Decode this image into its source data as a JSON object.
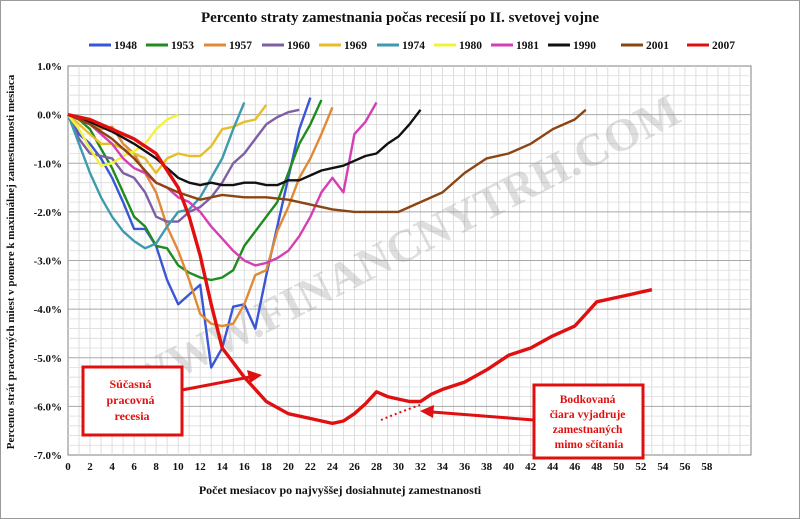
{
  "chart_data": {
    "type": "line",
    "title": "Percento straty zamestnania počas recesií po II. svetovej vojne",
    "xlabel": "Počet mesiacov po najvyššej dosiahnutej zamestnanosti",
    "ylabel": "Percento strát pracovných miest  v pomere k maximálnej zamestnanosti mesiaca",
    "xlim": [
      0,
      62
    ],
    "ylim": [
      -7.0,
      1.0
    ],
    "x_ticks": [
      "0",
      "2",
      "4",
      "6",
      "8",
      "10",
      "12",
      "14",
      "16",
      "18",
      "20",
      "22",
      "24",
      "26",
      "28",
      "30",
      "32",
      "34",
      "36",
      "38",
      "40",
      "42",
      "44",
      "46",
      "48",
      "50",
      "52",
      "54",
      "56",
      "58"
    ],
    "y_ticks": [
      "1.0%",
      "0.0%",
      "-1.0%",
      "-2.0%",
      "-3.0%",
      "-4.0%",
      "-5.0%",
      "-6.0%",
      "-7.0%"
    ],
    "grid": true,
    "legend_position": "top",
    "watermark": "WWW.FINANCNYTRH.COM",
    "series": [
      {
        "name": "1948",
        "color": "#3a55d8",
        "x": [
          0,
          1,
          2,
          3,
          4,
          5,
          6,
          7,
          8,
          9,
          10,
          11,
          12,
          13,
          14,
          15,
          16,
          17,
          18,
          19,
          20,
          21,
          22
        ],
        "y": [
          0,
          -0.4,
          -0.6,
          -0.9,
          -1.3,
          -1.8,
          -2.35,
          -2.35,
          -2.7,
          -3.4,
          -3.9,
          -3.7,
          -3.5,
          -5.2,
          -4.8,
          -3.95,
          -3.9,
          -4.4,
          -3.3,
          -2.3,
          -1.3,
          -0.3,
          0.35
        ]
      },
      {
        "name": "1953",
        "color": "#1e8c1e",
        "x": [
          0,
          1,
          2,
          3,
          4,
          5,
          6,
          7,
          8,
          9,
          10,
          11,
          12,
          13,
          14,
          15,
          16,
          17,
          18,
          19,
          20,
          21,
          22,
          23
        ],
        "y": [
          0,
          -0.1,
          -0.3,
          -0.7,
          -1.1,
          -1.6,
          -2.1,
          -2.3,
          -2.7,
          -2.75,
          -3.1,
          -3.25,
          -3.35,
          -3.4,
          -3.35,
          -3.2,
          -2.7,
          -2.4,
          -2.1,
          -1.8,
          -1.2,
          -0.6,
          -0.2,
          0.3
        ]
      },
      {
        "name": "1957",
        "color": "#e08a38",
        "x": [
          0,
          1,
          2,
          3,
          4,
          5,
          6,
          7,
          8,
          9,
          10,
          11,
          12,
          13,
          14,
          15,
          16,
          17,
          18,
          19,
          20,
          21,
          22,
          23,
          24
        ],
        "y": [
          0,
          -0.1,
          -0.2,
          -0.3,
          -0.25,
          -0.6,
          -0.8,
          -1.2,
          -1.6,
          -2.3,
          -2.8,
          -3.4,
          -4.1,
          -4.3,
          -4.35,
          -4.3,
          -3.9,
          -3.3,
          -3.2,
          -2.4,
          -1.9,
          -1.3,
          -0.9,
          -0.4,
          0.15
        ]
      },
      {
        "name": "1960",
        "color": "#7d5fa6",
        "x": [
          0,
          1,
          2,
          3,
          4,
          5,
          6,
          7,
          8,
          9,
          10,
          11,
          12,
          13,
          14,
          15,
          16,
          17,
          18,
          19,
          20,
          21
        ],
        "y": [
          0,
          -0.5,
          -0.8,
          -0.85,
          -0.9,
          -1.2,
          -1.3,
          -1.6,
          -2.1,
          -2.2,
          -2.2,
          -2.0,
          -1.9,
          -1.7,
          -1.4,
          -1.0,
          -0.8,
          -0.5,
          -0.2,
          -0.05,
          0.05,
          0.1
        ]
      },
      {
        "name": "1969",
        "color": "#e8be28",
        "x": [
          0,
          1,
          2,
          3,
          4,
          5,
          6,
          7,
          8,
          9,
          10,
          11,
          12,
          13,
          14,
          15,
          16,
          17,
          18
        ],
        "y": [
          0,
          -0.2,
          -0.4,
          -0.6,
          -0.6,
          -0.7,
          -0.8,
          -0.9,
          -1.2,
          -0.9,
          -0.8,
          -0.85,
          -0.85,
          -0.65,
          -0.3,
          -0.25,
          -0.15,
          -0.1,
          0.2
        ]
      },
      {
        "name": "1974",
        "color": "#3f9aae",
        "x": [
          0,
          1,
          2,
          3,
          4,
          5,
          6,
          7,
          8,
          9,
          10,
          11,
          12,
          13,
          14,
          15,
          16
        ],
        "y": [
          0,
          -0.6,
          -1.2,
          -1.7,
          -2.1,
          -2.4,
          -2.6,
          -2.75,
          -2.65,
          -2.3,
          -2.0,
          -1.95,
          -1.7,
          -1.3,
          -0.9,
          -0.3,
          0.25
        ]
      },
      {
        "name": "1980",
        "color": "#f2f23c",
        "x": [
          0,
          1,
          2,
          3,
          4,
          5,
          6,
          7,
          8,
          9,
          10
        ],
        "y": [
          0,
          -0.3,
          -0.7,
          -1.05,
          -1.0,
          -0.85,
          -0.75,
          -0.6,
          -0.3,
          -0.1,
          0.0
        ]
      },
      {
        "name": "1981",
        "color": "#d43fb4",
        "x": [
          0,
          1,
          2,
          3,
          4,
          5,
          6,
          7,
          8,
          9,
          10,
          11,
          12,
          13,
          14,
          15,
          16,
          17,
          18,
          19,
          20,
          21,
          22,
          23,
          24,
          25,
          26,
          27,
          28
        ],
        "y": [
          0,
          -0.1,
          -0.2,
          -0.4,
          -0.6,
          -0.9,
          -1.1,
          -1.2,
          -1.4,
          -1.5,
          -1.7,
          -1.8,
          -2.0,
          -2.3,
          -2.55,
          -2.8,
          -3.0,
          -3.1,
          -3.05,
          -2.95,
          -2.8,
          -2.5,
          -2.1,
          -1.6,
          -1.3,
          -1.6,
          -0.4,
          -0.15,
          0.25
        ]
      },
      {
        "name": "1990",
        "color": "#111111",
        "x": [
          0,
          2,
          4,
          6,
          8,
          10,
          11,
          12,
          13,
          14,
          15,
          16,
          17,
          18,
          19,
          20,
          21,
          22,
          23,
          24,
          25,
          26,
          27,
          28,
          29,
          30,
          31,
          32
        ],
        "y": [
          0,
          -0.15,
          -0.35,
          -0.6,
          -0.9,
          -1.3,
          -1.4,
          -1.45,
          -1.4,
          -1.45,
          -1.45,
          -1.4,
          -1.4,
          -1.45,
          -1.45,
          -1.35,
          -1.35,
          -1.25,
          -1.15,
          -1.1,
          -1.05,
          -0.95,
          -0.85,
          -0.8,
          -0.6,
          -0.45,
          -0.2,
          0.1
        ]
      },
      {
        "name": "2001",
        "color": "#8b4513",
        "x": [
          0,
          2,
          4,
          6,
          8,
          10,
          12,
          14,
          16,
          18,
          20,
          22,
          24,
          26,
          28,
          30,
          32,
          34,
          36,
          38,
          40,
          42,
          44,
          46,
          47
        ],
        "y": [
          0,
          -0.2,
          -0.5,
          -0.9,
          -1.4,
          -1.6,
          -1.75,
          -1.65,
          -1.7,
          -1.7,
          -1.75,
          -1.85,
          -1.95,
          -2.0,
          -2.0,
          -2.0,
          -1.8,
          -1.6,
          -1.2,
          -0.9,
          -0.8,
          -0.6,
          -0.3,
          -0.1,
          0.1
        ]
      },
      {
        "name": "2007",
        "color": "#e01010",
        "x": [
          0,
          2,
          4,
          6,
          8,
          10,
          11,
          12,
          13,
          14,
          16,
          18,
          20,
          22,
          24,
          25,
          26,
          27,
          28,
          29,
          30,
          31,
          32,
          33,
          34,
          36,
          38,
          40,
          42,
          44,
          46,
          47,
          48,
          50,
          53
        ],
        "y": [
          0,
          -0.1,
          -0.3,
          -0.5,
          -0.8,
          -1.5,
          -2.1,
          -2.9,
          -3.9,
          -4.8,
          -5.4,
          -5.9,
          -6.15,
          -6.25,
          -6.35,
          -6.3,
          -6.15,
          -5.95,
          -5.7,
          -5.8,
          -5.85,
          -5.9,
          -5.9,
          -5.75,
          -5.65,
          -5.5,
          -5.25,
          -4.95,
          -4.8,
          -4.55,
          -4.35,
          -4.1,
          -3.85,
          -3.75,
          -3.6
        ]
      }
    ],
    "annotations": [
      {
        "id": "current",
        "lines": [
          "Súčasná",
          "pracovná",
          "recesia"
        ]
      },
      {
        "id": "dotted",
        "lines": [
          "Bodkovaná",
          "čiara vyjadruje",
          "zamestnaných",
          "mimo sčítania"
        ]
      }
    ]
  }
}
